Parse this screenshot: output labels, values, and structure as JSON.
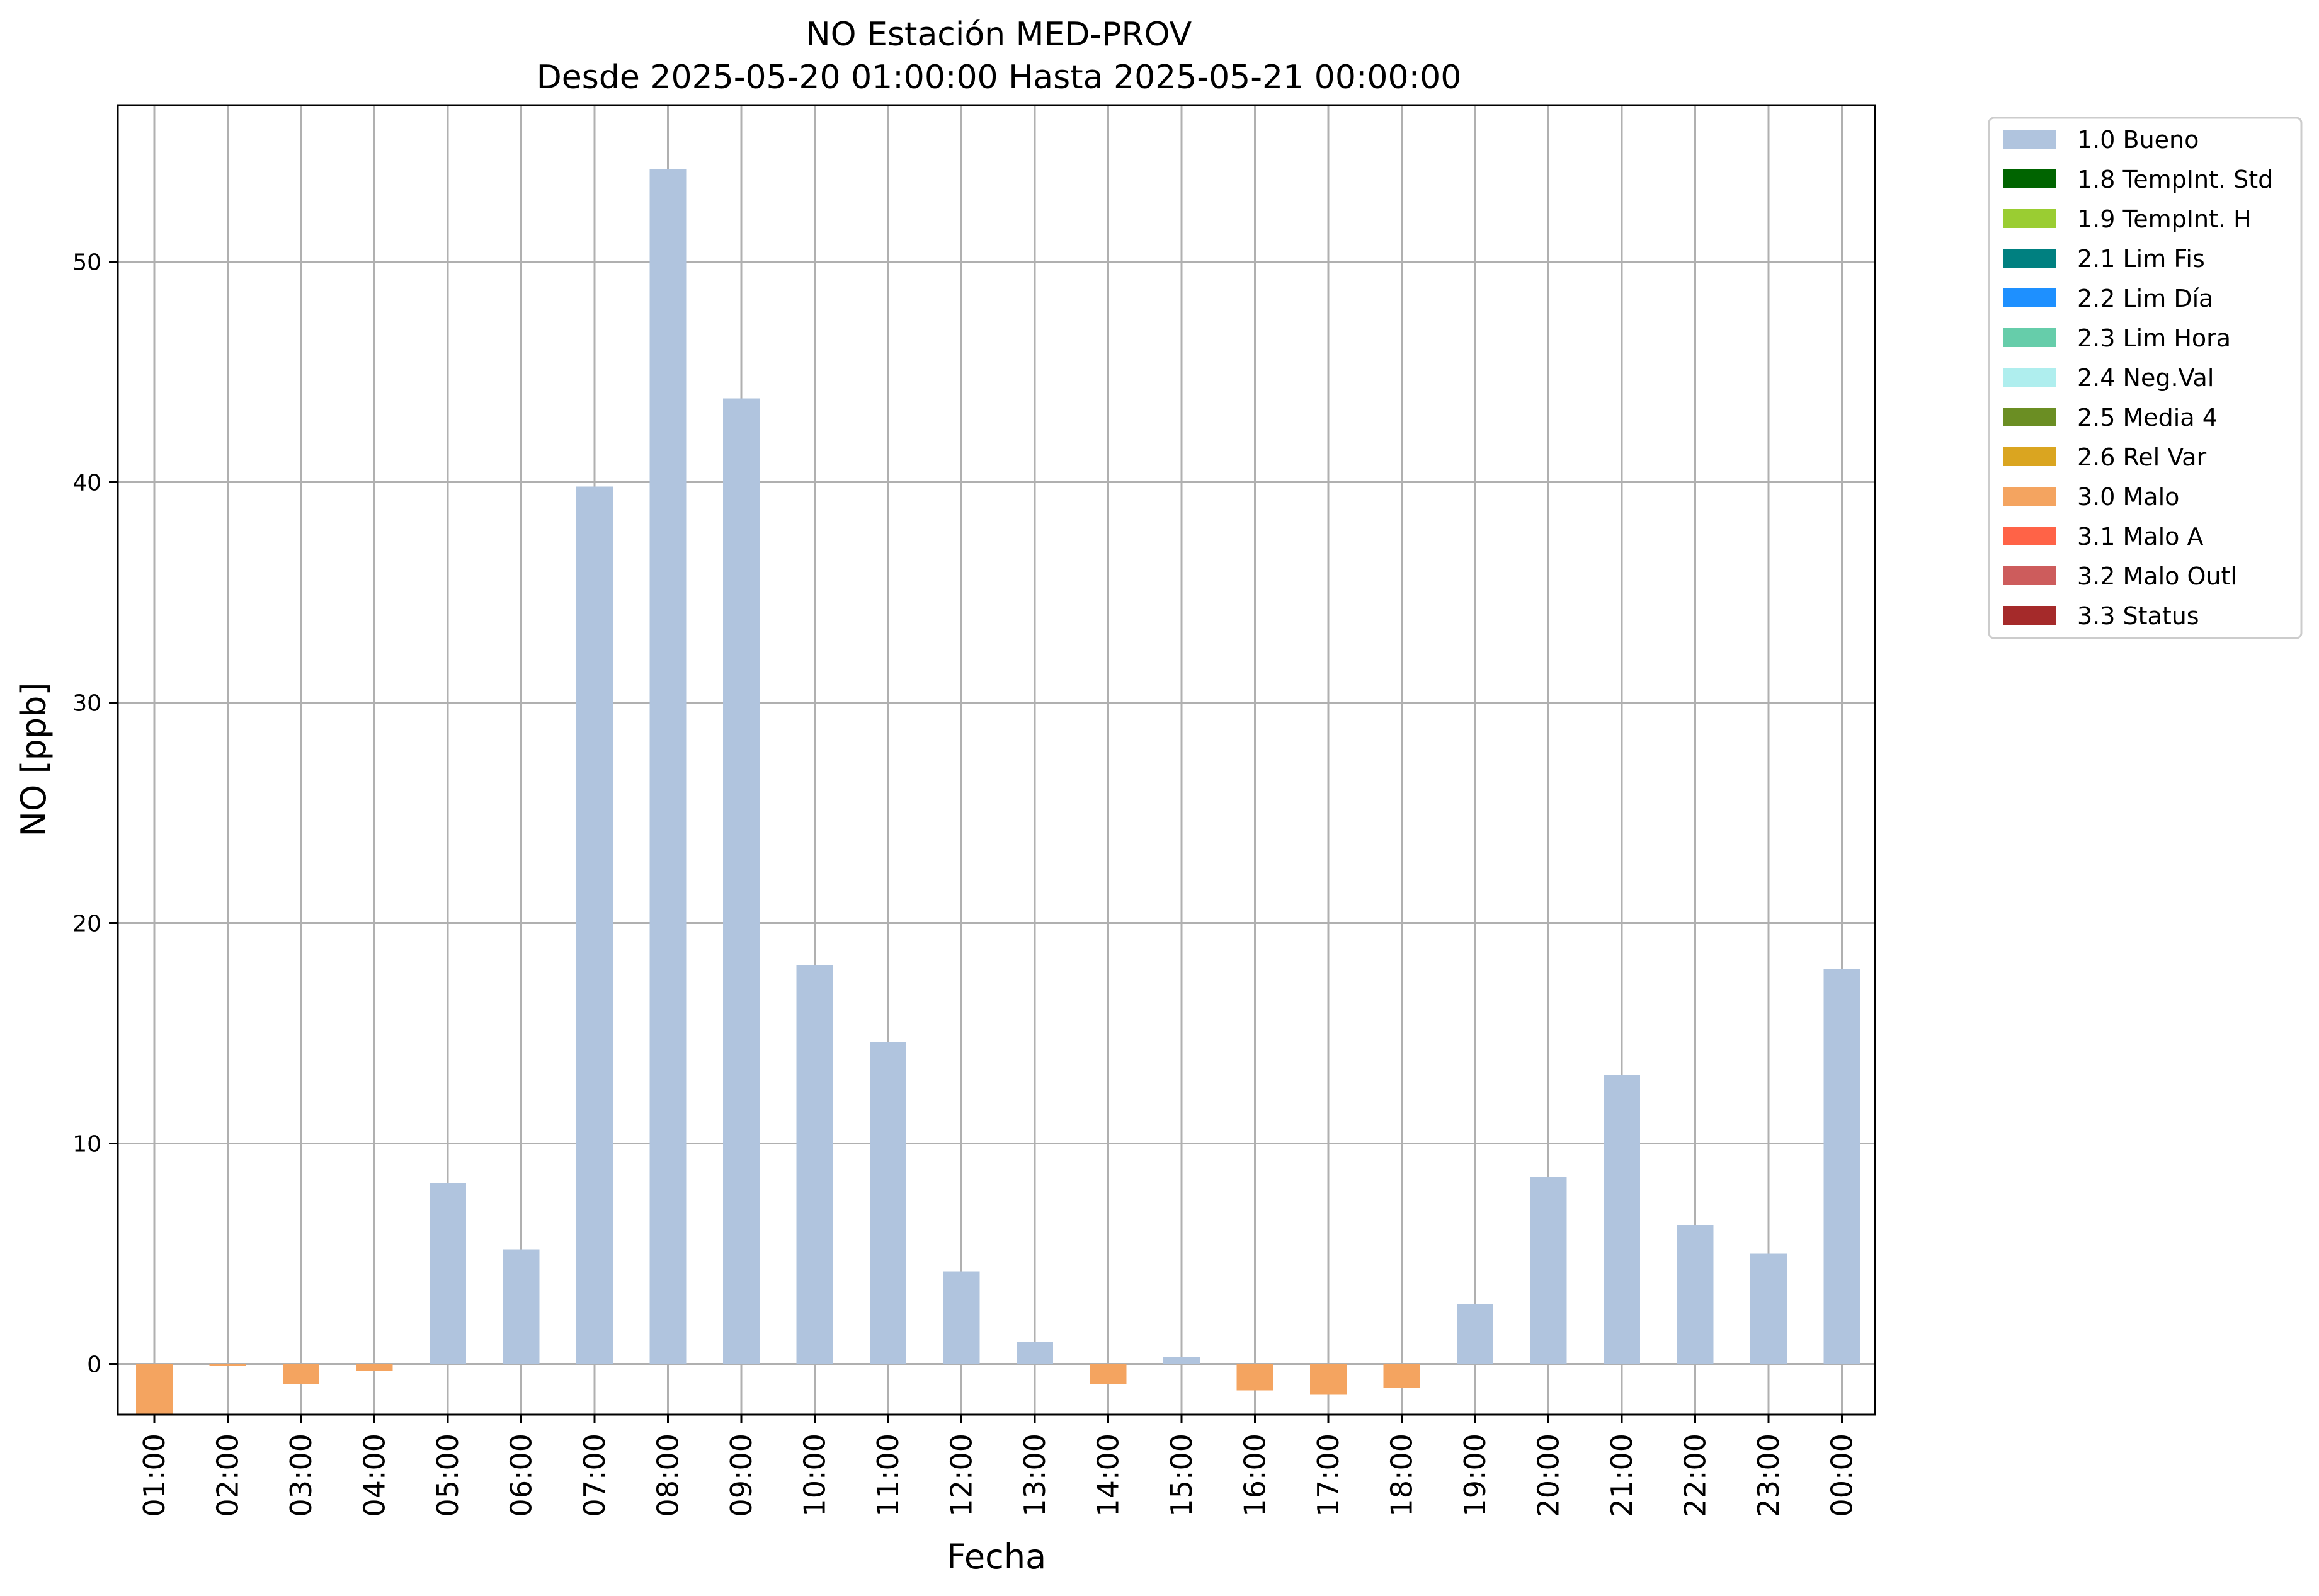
{
  "chart_data": {
    "type": "bar",
    "title": "NO Estación MED-PROV",
    "subtitle": "Desde 2025-05-20 01:00:00 Hasta 2025-05-21 00:00:00",
    "xlabel": "Fecha",
    "ylabel": "NO [ppb]",
    "ylim": [
      -2.3,
      57.1
    ],
    "yticks": [
      0,
      10,
      20,
      30,
      40,
      50
    ],
    "grid": true,
    "legend_position": "outside-top-right",
    "categories": [
      "01:00",
      "02:00",
      "03:00",
      "04:00",
      "05:00",
      "06:00",
      "07:00",
      "08:00",
      "09:00",
      "10:00",
      "11:00",
      "12:00",
      "13:00",
      "14:00",
      "15:00",
      "16:00",
      "17:00",
      "18:00",
      "19:00",
      "20:00",
      "21:00",
      "22:00",
      "23:00",
      "00:00"
    ],
    "values": [
      -2.3,
      -0.1,
      -0.9,
      -0.3,
      8.2,
      5.2,
      39.8,
      54.2,
      43.8,
      18.1,
      14.6,
      4.2,
      1.0,
      -0.9,
      0.3,
      -1.2,
      -1.4,
      -1.1,
      2.7,
      8.5,
      13.1,
      6.3,
      5.0,
      17.9
    ],
    "flags": [
      "3.0 Malo",
      "3.0 Malo",
      "3.0 Malo",
      "3.0 Malo",
      "1.0 Bueno",
      "1.0 Bueno",
      "1.0 Bueno",
      "1.0 Bueno",
      "1.0 Bueno",
      "1.0 Bueno",
      "1.0 Bueno",
      "1.0 Bueno",
      "1.0 Bueno",
      "3.0 Malo",
      "1.0 Bueno",
      "3.0 Malo",
      "3.0 Malo",
      "3.0 Malo",
      "1.0 Bueno",
      "1.0 Bueno",
      "1.0 Bueno",
      "1.0 Bueno",
      "1.0 Bueno",
      "1.0 Bueno"
    ],
    "legend": [
      {
        "name": "1.0 Bueno",
        "color": "#b0c4de"
      },
      {
        "name": "1.8 TempInt. Std",
        "color": "#006400"
      },
      {
        "name": "1.9 TempInt. H",
        "color": "#9acd32"
      },
      {
        "name": "2.1 Lim Fis",
        "color": "#008080"
      },
      {
        "name": "2.2 Lim Día",
        "color": "#1e90ff"
      },
      {
        "name": "2.3 Lim Hora",
        "color": "#66cdaa"
      },
      {
        "name": "2.4 Neg.Val",
        "color": "#afeeee"
      },
      {
        "name": "2.5 Media 4",
        "color": "#6b8e23"
      },
      {
        "name": "2.6 Rel Var",
        "color": "#daa520"
      },
      {
        "name": "3.0 Malo",
        "color": "#f4a460"
      },
      {
        "name": "3.1 Malo A",
        "color": "#ff6347"
      },
      {
        "name": "3.2 Malo Outl",
        "color": "#cd5c5c"
      },
      {
        "name": "3.3 Status",
        "color": "#a52a2a"
      }
    ]
  }
}
